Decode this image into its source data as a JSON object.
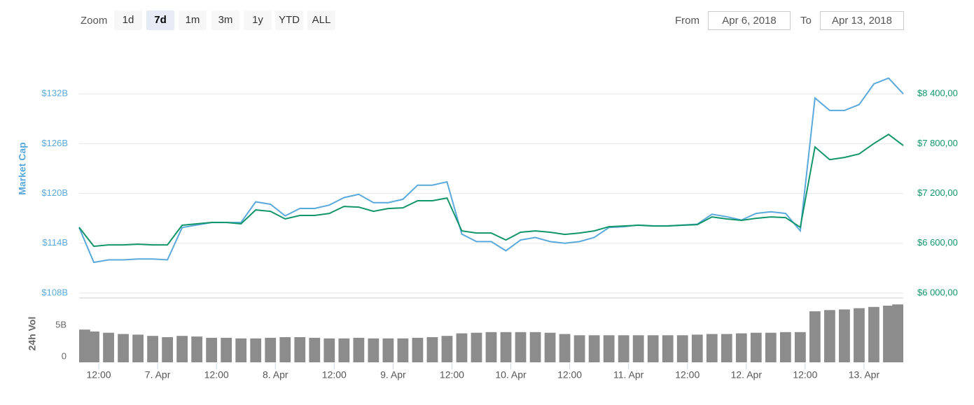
{
  "zoom": {
    "label": "Zoom",
    "buttons": [
      "1d",
      "7d",
      "1m",
      "3m",
      "1y",
      "YTD",
      "ALL"
    ],
    "active": 1
  },
  "range": {
    "from_label": "From",
    "from": "Apr 6, 2018",
    "to_label": "To",
    "to": "Apr 13, 2018"
  },
  "chart_data": [
    {
      "type": "line",
      "ylabel": "Market Cap",
      "grid": true,
      "x": [
        "2018-04-06T08:00",
        "2018-04-06T11:00",
        "2018-04-06T14:00",
        "2018-04-06T17:00",
        "2018-04-06T20:00",
        "2018-04-06T23:00",
        "2018-04-07T02:00",
        "2018-04-07T05:00",
        "2018-04-07T08:00",
        "2018-04-07T11:00",
        "2018-04-07T14:00",
        "2018-04-07T17:00",
        "2018-04-07T20:00",
        "2018-04-07T23:00",
        "2018-04-08T02:00",
        "2018-04-08T05:00",
        "2018-04-08T08:00",
        "2018-04-08T11:00",
        "2018-04-08T14:00",
        "2018-04-08T17:00",
        "2018-04-08T20:00",
        "2018-04-08T23:00",
        "2018-04-09T02:00",
        "2018-04-09T05:00",
        "2018-04-09T08:00",
        "2018-04-09T11:00",
        "2018-04-09T14:00",
        "2018-04-09T17:00",
        "2018-04-09T20:00",
        "2018-04-09T23:00",
        "2018-04-10T02:00",
        "2018-04-10T05:00",
        "2018-04-10T08:00",
        "2018-04-10T11:00",
        "2018-04-10T14:00",
        "2018-04-10T17:00",
        "2018-04-10T20:00",
        "2018-04-10T23:00",
        "2018-04-11T02:00",
        "2018-04-11T05:00",
        "2018-04-11T08:00",
        "2018-04-11T11:00",
        "2018-04-11T14:00",
        "2018-04-11T17:00",
        "2018-04-11T20:00",
        "2018-04-11T23:00",
        "2018-04-12T02:00",
        "2018-04-12T05:00",
        "2018-04-12T08:00",
        "2018-04-12T11:00",
        "2018-04-12T14:00",
        "2018-04-12T17:00",
        "2018-04-12T20:00",
        "2018-04-12T23:00",
        "2018-04-13T02:00",
        "2018-04-13T05:00",
        "2018-04-13T08:00"
      ],
      "xlim": [
        "2018-04-06T08:00",
        "2018-04-13T08:00"
      ],
      "xticks": [
        {
          "value": "2018-04-06T12:00",
          "label": "12:00"
        },
        {
          "value": "2018-04-07T00:00",
          "label": "7. Apr"
        },
        {
          "value": "2018-04-07T12:00",
          "label": "12:00"
        },
        {
          "value": "2018-04-08T00:00",
          "label": "8. Apr"
        },
        {
          "value": "2018-04-08T12:00",
          "label": "12:00"
        },
        {
          "value": "2018-04-09T00:00",
          "label": "9. Apr"
        },
        {
          "value": "2018-04-09T12:00",
          "label": "12:00"
        },
        {
          "value": "2018-04-10T00:00",
          "label": "10. Apr"
        },
        {
          "value": "2018-04-10T12:00",
          "label": "12:00"
        },
        {
          "value": "2018-04-11T00:00",
          "label": "11. Apr"
        },
        {
          "value": "2018-04-11T12:00",
          "label": "12:00"
        },
        {
          "value": "2018-04-12T00:00",
          "label": "12. Apr"
        },
        {
          "value": "2018-04-12T12:00",
          "label": "12:00"
        },
        {
          "value": "2018-04-13T00:00",
          "label": "13. Apr"
        }
      ],
      "ylim": [
        108,
        138
      ],
      "yticks": [
        {
          "value": 108,
          "label": "$108B"
        },
        {
          "value": 114,
          "label": "$114B"
        },
        {
          "value": 120,
          "label": "$120B"
        },
        {
          "value": 126,
          "label": "$126B"
        },
        {
          "value": 132,
          "label": "$132B"
        }
      ],
      "y2lim": [
        6000,
        9000
      ],
      "y2ticks": [
        {
          "value": 6000,
          "label": "$6 000,00"
        },
        {
          "value": 6600,
          "label": "$6 600,00"
        },
        {
          "value": 7200,
          "label": "$7 200,00"
        },
        {
          "value": 7800,
          "label": "$7 800,00"
        },
        {
          "value": 8400,
          "label": "$8 400,00"
        }
      ],
      "series": [
        {
          "color": "#5aa9dc",
          "values": [
            115.9,
            111.7,
            112.0,
            112.0,
            112.1,
            112.1,
            112.0,
            115.9,
            116.2,
            116.5,
            116.5,
            116.5,
            119.0,
            118.7,
            117.3,
            118.2,
            118.2,
            118.6,
            119.5,
            119.9,
            118.9,
            118.9,
            119.3,
            121.0,
            121.0,
            121.4,
            115.1,
            114.2,
            114.2,
            113.1,
            114.4,
            114.7,
            114.2,
            114.0,
            114.2,
            114.7,
            115.9,
            116.0,
            116.2,
            116.1,
            116.1,
            116.2,
            116.3,
            117.5,
            117.2,
            116.8,
            117.6,
            117.8,
            117.6,
            115.5,
            131.5,
            130.0,
            130.0,
            130.7,
            133.2,
            133.9,
            132.0
          ]
        },
        {
          "color": "#11956b",
          "axis": "y2",
          "values": [
            6792,
            6564,
            6581,
            6581,
            6589,
            6581,
            6581,
            6817,
            6834,
            6851,
            6851,
            6834,
            7002,
            6985,
            6893,
            6935,
            6935,
            6960,
            7044,
            7036,
            6985,
            7019,
            7027,
            7112,
            7112,
            7145,
            6749,
            6724,
            6724,
            6640,
            6733,
            6749,
            6733,
            6707,
            6724,
            6749,
            6800,
            6808,
            6817,
            6808,
            6808,
            6817,
            6825,
            6918,
            6893,
            6876,
            6901,
            6918,
            6909,
            6792,
            7760,
            7608,
            7634,
            7676,
            7802,
            7912,
            7777
          ]
        }
      ]
    },
    {
      "type": "bar",
      "ylabel": "24h Vol",
      "color": "#8c8c8c",
      "x": [
        "2018-04-06T08:00",
        "2018-04-06T11:00",
        "2018-04-06T14:00",
        "2018-04-06T17:00",
        "2018-04-06T20:00",
        "2018-04-06T23:00",
        "2018-04-07T02:00",
        "2018-04-07T05:00",
        "2018-04-07T08:00",
        "2018-04-07T11:00",
        "2018-04-07T14:00",
        "2018-04-07T17:00",
        "2018-04-07T20:00",
        "2018-04-07T23:00",
        "2018-04-08T02:00",
        "2018-04-08T05:00",
        "2018-04-08T08:00",
        "2018-04-08T11:00",
        "2018-04-08T14:00",
        "2018-04-08T17:00",
        "2018-04-08T20:00",
        "2018-04-08T23:00",
        "2018-04-09T02:00",
        "2018-04-09T05:00",
        "2018-04-09T08:00",
        "2018-04-09T11:00",
        "2018-04-09T14:00",
        "2018-04-09T17:00",
        "2018-04-09T20:00",
        "2018-04-09T23:00",
        "2018-04-10T02:00",
        "2018-04-10T05:00",
        "2018-04-10T08:00",
        "2018-04-10T11:00",
        "2018-04-10T14:00",
        "2018-04-10T17:00",
        "2018-04-10T20:00",
        "2018-04-10T23:00",
        "2018-04-11T02:00",
        "2018-04-11T05:00",
        "2018-04-11T08:00",
        "2018-04-11T11:00",
        "2018-04-11T14:00",
        "2018-04-11T17:00",
        "2018-04-11T20:00",
        "2018-04-11T23:00",
        "2018-04-12T02:00",
        "2018-04-12T05:00",
        "2018-04-12T08:00",
        "2018-04-12T11:00",
        "2018-04-12T14:00",
        "2018-04-12T17:00",
        "2018-04-12T20:00",
        "2018-04-12T23:00",
        "2018-04-13T02:00",
        "2018-04-13T05:00",
        "2018-04-13T08:00"
      ],
      "xlim": [
        "2018-04-06T08:00",
        "2018-04-13T08:00"
      ],
      "ylim": [
        0,
        10
      ],
      "yticks": [
        0,
        {
          "value": 5,
          "label": "5B"
        }
      ],
      "values": [
        5.2,
        4.9,
        4.7,
        4.5,
        4.4,
        4.2,
        4.0,
        4.2,
        4.1,
        3.9,
        3.9,
        3.8,
        3.8,
        3.9,
        4.0,
        4.0,
        3.9,
        3.8,
        3.8,
        3.9,
        3.8,
        3.8,
        3.8,
        3.9,
        4.0,
        4.2,
        4.6,
        4.7,
        4.8,
        4.8,
        4.8,
        4.8,
        4.7,
        4.5,
        4.3,
        4.3,
        4.3,
        4.3,
        4.3,
        4.3,
        4.3,
        4.3,
        4.4,
        4.5,
        4.5,
        4.6,
        4.7,
        4.7,
        4.8,
        4.8,
        8.1,
        8.3,
        8.4,
        8.6,
        8.8,
        9.0,
        9.2
      ]
    }
  ]
}
